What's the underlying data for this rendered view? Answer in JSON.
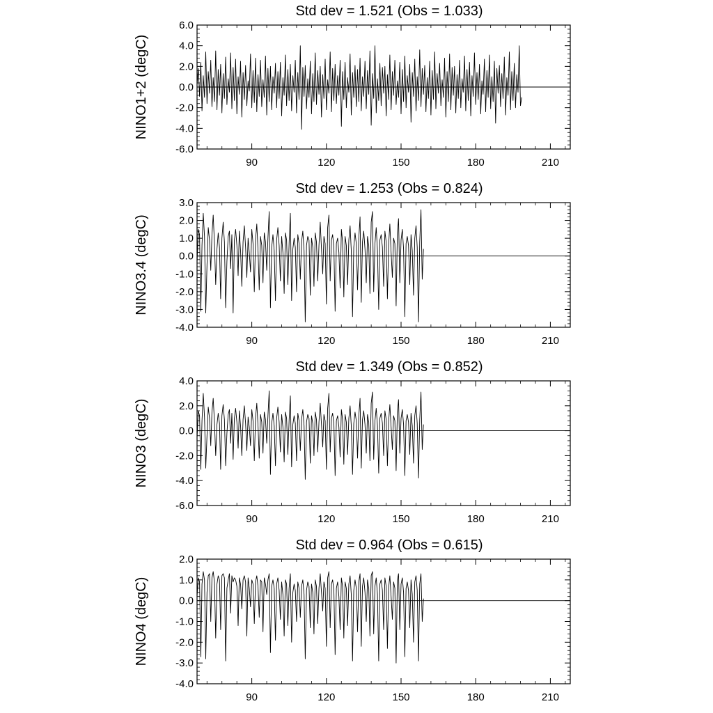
{
  "figure": {
    "background": "#ffffff",
    "line_color": "#000000"
  },
  "chart_data": [
    {
      "type": "line",
      "title": "Std dev = 1.521 (Obs = 1.033)",
      "ylabel": "NINO1+2 (degC)",
      "xlim": [
        68,
        218
      ],
      "ylim": [
        -6,
        6
      ],
      "x_ticks": [
        90,
        120,
        150,
        180,
        210
      ],
      "x_tick_labels": [
        "90",
        "120",
        "150",
        "180",
        "210"
      ],
      "y_ticks": [
        -6,
        -4,
        -2,
        0,
        2,
        4,
        6
      ],
      "y_tick_labels": [
        "-6.0",
        "-4.0",
        "-2.0",
        "0.0",
        "2.0",
        "4.0",
        "6.0"
      ],
      "reference_line": 0,
      "series": [
        {
          "x_start": 68,
          "x_step": 0.5,
          "values": [
            0.2,
            1.8,
            -0.9,
            2.4,
            -2.3,
            1.1,
            -1.0,
            3.4,
            -1.6,
            1.5,
            -0.6,
            2.6,
            -1.9,
            0.9,
            -1.4,
            3.5,
            -2.2,
            1.7,
            -0.8,
            2.2,
            -2.5,
            1.3,
            -1.1,
            2.9,
            -1.7,
            0.8,
            -0.5,
            3.3,
            -2.1,
            1.9,
            -1.3,
            2.7,
            -2.6,
            1.0,
            -0.7,
            2.5,
            -2.9,
            1.4,
            -1.2,
            2.1,
            -1.8,
            0.6,
            -0.4,
            3.2,
            -2.0,
            1.6,
            -1.5,
            2.8,
            -2.4,
            1.2,
            -0.9,
            2.6,
            -1.9,
            0.7,
            -1.0,
            3.0,
            -2.7,
            1.8,
            -1.4,
            2.0,
            -2.2,
            1.0,
            -0.6,
            2.3,
            -2.0,
            1.5,
            -1.1,
            2.4,
            -2.8,
            0.9,
            -0.8,
            3.1,
            -1.8,
            1.7,
            -1.3,
            2.2,
            -2.3,
            1.1,
            -0.5,
            2.6,
            -2.5,
            1.4,
            -1.2,
            4.0,
            -4.1,
            1.9,
            -0.9,
            2.1,
            -2.1,
            0.8,
            -1.0,
            2.5,
            -2.6,
            1.3,
            -1.4,
            3.3,
            -1.7,
            1.6,
            -0.7,
            2.0,
            -2.9,
            1.2,
            -1.1,
            2.7,
            -2.2,
            0.7,
            -0.6,
            3.4,
            -2.4,
            1.8,
            -1.3,
            2.2,
            -1.6,
            1.1,
            -0.8,
            2.6,
            -3.8,
            1.5,
            -1.2,
            2.4,
            -2.0,
            0.9,
            -0.5,
            3.2,
            -2.7,
            1.4,
            -1.0,
            2.1,
            -1.9,
            1.7,
            -1.4,
            2.8,
            -2.3,
            1.0,
            -0.9,
            2.5,
            -2.1,
            1.6,
            -0.7,
            3.5,
            -3.7,
            1.3,
            -1.1,
            4.0,
            -2.5,
            0.8,
            -1.3,
            2.3,
            -1.8,
            1.9,
            -0.6,
            2.0,
            -2.8,
            1.2,
            -1.2,
            3.1,
            -2.2,
            1.5,
            -0.8,
            2.6,
            -1.7,
            0.6,
            -1.0,
            2.4,
            -2.6,
            1.7,
            -1.4,
            3.0,
            -2.0,
            1.1,
            -0.5,
            2.2,
            -3.4,
            1.4,
            -0.9,
            2.7,
            -2.3,
            1.0,
            -1.3,
            3.6,
            -1.9,
            1.8,
            -0.7,
            2.1,
            -2.4,
            0.9,
            -1.1,
            2.5,
            -2.7,
            1.6,
            -1.2,
            3.4,
            -2.1,
            1.3,
            -0.6,
            2.3,
            -1.8,
            0.7,
            -1.0,
            2.8,
            -2.9,
            1.5,
            -1.4,
            3.2,
            -2.2,
            1.9,
            -0.8,
            2.0,
            -2.5,
            1.2,
            -1.1,
            2.6,
            -2.0,
            0.8,
            -0.5,
            3.0,
            -2.3,
            1.7,
            -1.3,
            2.4,
            -2.8,
            1.1,
            -0.9,
            3.3,
            -1.7,
            1.4,
            -1.2,
            2.2,
            -2.6,
            0.6,
            -0.7,
            2.7,
            -2.4,
            1.6,
            -1.0,
            3.1,
            -2.1,
            1.0,
            -1.4,
            2.5,
            -3.5,
            1.8,
            -0.6,
            2.1,
            -1.9,
            1.3,
            -1.1,
            2.9,
            -2.7,
            0.9,
            -0.8,
            3.4,
            -2.2,
            1.5,
            -1.3,
            2.3,
            -2.0,
            1.2,
            -0.5,
            4.0,
            -1.8,
            -1.0
          ]
        }
      ]
    },
    {
      "type": "line",
      "title": "Std dev = 1.253 (Obs = 0.824)",
      "ylabel": "NINO3.4 (degC)",
      "xlim": [
        68,
        218
      ],
      "ylim": [
        -4,
        3
      ],
      "x_ticks": [
        90,
        120,
        150,
        180,
        210
      ],
      "x_tick_labels": [
        "90",
        "120",
        "150",
        "180",
        "210"
      ],
      "y_ticks": [
        -4,
        -3,
        -2,
        -1,
        0,
        1,
        2,
        3
      ],
      "y_tick_labels": [
        "-4.0",
        "-3.0",
        "-2.0",
        "-1.0",
        "0.0",
        "1.0",
        "2.0",
        "3.0"
      ],
      "reference_line": 0,
      "series": [
        {
          "x_start": 68,
          "x_step": 0.5,
          "values": [
            -0.4,
            1.5,
            1.2,
            -3.1,
            0.6,
            2.4,
            1.1,
            -3.2,
            -0.5,
            1.6,
            0.9,
            -0.8,
            1.2,
            2.3,
            0.7,
            -1.6,
            0.4,
            1.3,
            0.5,
            -2.4,
            1.0,
            1.9,
            0.8,
            -2.9,
            -0.3,
            1.1,
            1.4,
            -0.7,
            1.2,
            -3.2,
            0.9,
            1.5,
            0.6,
            -1.1,
            1.4,
            0.3,
            -1.7,
            0.8,
            1.7,
            0.5,
            -1.2,
            1.0,
            0.2,
            -0.9,
            1.5,
            0.7,
            -2.0,
            0.9,
            1.8,
            0.4,
            -1.9,
            1.1,
            0.6,
            -1.5,
            1.3,
            0.8,
            -0.8,
            1.0,
            2.5,
            -2.9,
            0.5,
            1.2,
            0.3,
            -2.5,
            0.9,
            1.6,
            0.6,
            -1.4,
            1.1,
            0.2,
            -2.1,
            1.3,
            0.9,
            -1.6,
            0.7,
            2.4,
            -2.5,
            0.4,
            1.0,
            0.5,
            -2.0,
            1.2,
            0.7,
            -1.3,
            0.8,
            1.4,
            0.3,
            -3.7,
            0.6,
            1.1,
            0.9,
            -2.2,
            1.0,
            0.5,
            -1.7,
            1.3,
            0.8,
            -1.4,
            0.6,
            1.9,
            0.4,
            -1.0,
            1.1,
            0.7,
            -2.7,
            1.6,
            2.3,
            -1.4,
            0.9,
            1.2,
            0.5,
            -3.1,
            0.7,
            1.0,
            0.2,
            -1.8,
            1.5,
            0.8,
            -2.3,
            1.1,
            0.6,
            -1.6,
            0.9,
            1.7,
            0.3,
            -3.4,
            0.5,
            1.3,
            0.7,
            -1.9,
            1.0,
            2.2,
            -2.6,
            0.8,
            1.4,
            0.4,
            -1.5,
            1.1,
            0.6,
            -2.1,
            1.9,
            2.5,
            -2.0,
            0.7,
            1.6,
            0.3,
            -3.0,
            0.9,
            1.2,
            0.5,
            -1.7,
            1.4,
            0.8,
            -2.4,
            0.6,
            1.8,
            0.2,
            -1.2,
            1.0,
            0.7,
            -2.8,
            1.3,
            2.1,
            -1.5,
            0.9,
            1.5,
            0.4,
            -3.4,
            0.7,
            1.1,
            0.6,
            -1.6,
            1.2,
            0.3,
            -2.2,
            1.0,
            1.7,
            0.5,
            -3.7,
            0.8,
            2.6,
            -1.3,
            0.4
          ]
        }
      ]
    },
    {
      "type": "line",
      "title": "Std dev = 1.349 (Obs = 0.852)",
      "ylabel": "NINO3 (degC)",
      "xlim": [
        68,
        218
      ],
      "ylim": [
        -6,
        4
      ],
      "x_ticks": [
        90,
        120,
        150,
        180,
        210
      ],
      "x_tick_labels": [
        "90",
        "120",
        "150",
        "180",
        "210"
      ],
      "y_ticks": [
        -6,
        -4,
        -2,
        0,
        2,
        4
      ],
      "y_tick_labels": [
        "-6.0",
        "-4.0",
        "-2.0",
        "0.0",
        "2.0",
        "4.0"
      ],
      "reference_line": 0,
      "series": [
        {
          "x_start": 68,
          "x_step": 0.5,
          "values": [
            -0.6,
            1.6,
            1.2,
            -3.1,
            0.8,
            3.0,
            1.1,
            -3.0,
            -0.4,
            1.9,
            1.0,
            -1.2,
            1.5,
            2.6,
            0.7,
            -2.0,
            0.5,
            1.4,
            0.6,
            -3.1,
            1.2,
            2.1,
            0.9,
            -2.8,
            -0.2,
            1.3,
            1.7,
            -1.0,
            1.4,
            -2.3,
            1.0,
            1.8,
            0.7,
            -1.4,
            1.6,
            0.4,
            -2.0,
            0.9,
            2.0,
            0.6,
            -1.6,
            1.1,
            0.3,
            -1.2,
            1.7,
            0.8,
            -2.4,
            1.0,
            2.2,
            0.5,
            -2.2,
            1.3,
            0.7,
            -1.8,
            1.5,
            0.9,
            -1.0,
            1.2,
            3.2,
            -3.5,
            0.6,
            1.4,
            0.4,
            -2.8,
            1.0,
            1.9,
            0.7,
            -1.7,
            1.3,
            0.3,
            -2.5,
            1.5,
            1.0,
            -1.9,
            0.8,
            2.8,
            -2.9,
            0.5,
            1.2,
            0.6,
            -2.4,
            1.4,
            0.8,
            -1.6,
            0.9,
            1.7,
            0.4,
            -3.9,
            0.7,
            1.3,
            1.0,
            -2.6,
            1.2,
            0.6,
            -2.0,
            1.5,
            0.9,
            -1.7,
            0.7,
            2.2,
            0.5,
            -1.3,
            1.3,
            0.8,
            -3.1,
            1.8,
            3.0,
            -1.7,
            1.0,
            1.4,
            0.6,
            -3.6,
            0.8,
            1.2,
            0.3,
            -2.1,
            1.7,
            0.9,
            -2.7,
            1.3,
            0.7,
            -1.9,
            1.0,
            2.0,
            0.4,
            -3.5,
            0.6,
            1.5,
            0.8,
            -2.2,
            1.2,
            2.6,
            -3.0,
            0.9,
            1.6,
            0.5,
            -1.8,
            1.3,
            0.7,
            -2.4,
            2.2,
            3.1,
            -2.3,
            0.8,
            1.8,
            0.4,
            -3.4,
            1.0,
            1.4,
            0.6,
            -2.0,
            1.6,
            0.9,
            -2.8,
            0.7,
            2.1,
            0.3,
            -1.5,
            1.2,
            0.8,
            -3.2,
            1.5,
            2.5,
            -1.8,
            1.0,
            1.7,
            0.5,
            -3.6,
            0.8,
            1.3,
            0.7,
            -1.9,
            1.4,
            0.4,
            -2.6,
            1.2,
            2.0,
            0.6,
            -3.8,
            0.9,
            3.1,
            -1.5,
            0.5
          ]
        }
      ]
    },
    {
      "type": "line",
      "title": "Std dev = 0.964 (Obs = 0.615)",
      "ylabel": "NINO4 (degC)",
      "xlim": [
        68,
        218
      ],
      "ylim": [
        -4,
        2
      ],
      "x_ticks": [
        90,
        120,
        150,
        180,
        210
      ],
      "x_tick_labels": [
        "90",
        "120",
        "150",
        "180",
        "210"
      ],
      "y_ticks": [
        -4,
        -3,
        -2,
        -1,
        0,
        1,
        2
      ],
      "y_tick_labels": [
        "-4.0",
        "-3.0",
        "-2.0",
        "-1.0",
        "0.0",
        "1.0",
        "2.0"
      ],
      "reference_line": 0,
      "series": [
        {
          "x_start": 68,
          "x_step": 0.5,
          "values": [
            0.2,
            1.1,
            0.9,
            -2.7,
            0.8,
            1.4,
            1.0,
            -2.8,
            0.4,
            1.2,
            1.3,
            -1.0,
            1.1,
            1.4,
            0.9,
            -1.8,
            0.8,
            1.2,
            1.0,
            -1.4,
            1.2,
            1.3,
            1.1,
            -2.9,
            0.6,
            1.0,
            1.3,
            -0.6,
            1.2,
            0.9,
            1.1,
            1.0,
            0.7,
            -1.2,
            1.1,
            0.8,
            -0.4,
            1.0,
            1.2,
            0.9,
            -1.7,
            1.1,
            0.6,
            -0.3,
            1.0,
            0.8,
            -1.1,
            0.9,
            1.2,
            0.7,
            -0.8,
            1.0,
            0.9,
            -1.5,
            1.1,
            0.8,
            0.3,
            1.0,
            1.3,
            -2.5,
            0.7,
            1.0,
            0.6,
            -1.9,
            0.8,
            1.1,
            0.5,
            -0.9,
            0.9,
            0.3,
            -1.7,
            1.0,
            0.8,
            -1.2,
            0.6,
            1.3,
            -2.0,
            0.4,
            0.8,
            0.5,
            -1.0,
            0.9,
            0.6,
            -0.8,
            0.7,
            1.0,
            0.3,
            -2.8,
            0.5,
            0.9,
            0.7,
            -1.3,
            0.8,
            0.4,
            -1.6,
            1.0,
            0.7,
            -1.1,
            0.6,
            1.3,
            0.4,
            -0.5,
            0.9,
            0.6,
            -2.2,
            1.1,
            1.4,
            -1.3,
            0.8,
            1.0,
            0.5,
            -2.6,
            0.6,
            0.9,
            0.2,
            -1.4,
            1.1,
            0.7,
            -1.8,
            0.9,
            0.6,
            -1.2,
            0.8,
            1.2,
            0.3,
            -2.9,
            0.5,
            1.0,
            0.6,
            -1.5,
            0.9,
            1.3,
            -2.2,
            0.7,
            1.1,
            0.4,
            -1.0,
            1.0,
            0.6,
            -1.7,
            1.2,
            1.4,
            -1.6,
            0.7,
            1.1,
            0.3,
            -2.9,
            0.8,
            1.0,
            0.5,
            -1.4,
            1.1,
            0.7,
            -2.3,
            0.6,
            1.2,
            0.2,
            -0.9,
            0.9,
            0.6,
            -3.0,
            1.0,
            1.3,
            -1.4,
            0.8,
            1.1,
            0.4,
            -2.7,
            0.6,
            0.9,
            0.5,
            -1.3,
            1.0,
            0.3,
            -2.0,
            0.9,
            1.2,
            0.5,
            -2.9,
            0.8,
            1.3,
            -1.0,
            0.1
          ]
        }
      ]
    }
  ]
}
